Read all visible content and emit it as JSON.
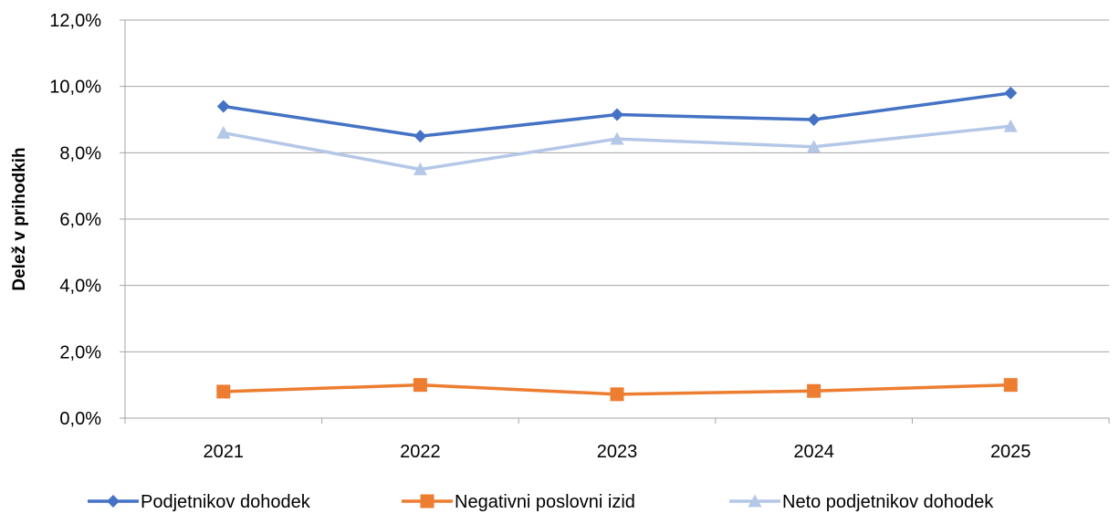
{
  "chart_data": {
    "type": "line",
    "title": "",
    "xlabel": "",
    "ylabel": "Delež v prihodkih",
    "categories": [
      "2021",
      "2022",
      "2023",
      "2024",
      "2025"
    ],
    "ylim": [
      0,
      12
    ],
    "yticks": [
      0,
      2,
      4,
      6,
      8,
      10,
      12
    ],
    "ytick_labels": [
      "0,0%",
      "2,0%",
      "4,0%",
      "6,0%",
      "8,0%",
      "10,0%",
      "12,0%"
    ],
    "grid": true,
    "legend_position": "bottom",
    "series": [
      {
        "name": "Podjetnikov dohodek",
        "values": [
          9.4,
          8.5,
          9.15,
          9.0,
          9.8
        ],
        "color": "#4472c4",
        "marker": "diamond"
      },
      {
        "name": "Negativni poslovni izid",
        "values": [
          0.8,
          1.0,
          0.72,
          0.82,
          1.0
        ],
        "color": "#ed7d31",
        "marker": "square"
      },
      {
        "name": "Neto podjetnikov dohodek",
        "values": [
          8.6,
          7.5,
          8.42,
          8.18,
          8.8
        ],
        "color": "#b4c7e7",
        "marker": "triangle"
      }
    ]
  }
}
